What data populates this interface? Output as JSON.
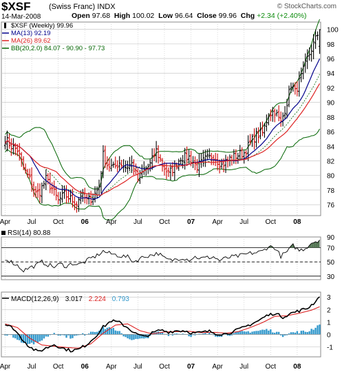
{
  "header": {
    "symbol": "$XSF",
    "name": "(Swiss Franc) INDX",
    "date": "14-Mar-2008",
    "open_label": "Open",
    "open": "97.68",
    "high_label": "High",
    "high": "100.02",
    "low_label": "Low",
    "low": "96.64",
    "close_label": "Close",
    "close": "99.96",
    "chg_label": "Chg",
    "chg": "+2.34 (+2.40%)",
    "credit": "© StockCharts.com"
  },
  "colors": {
    "up": "#000000",
    "down": "#cc0000",
    "ma13": "#00008b",
    "ma26": "#dd2222",
    "bb": "#006400",
    "macd": "#000000",
    "signal": "#dd2222",
    "hist": "#3399cc",
    "grid": "#c8c8c8",
    "rsi_fill": "#557755"
  },
  "chart_data": [
    {
      "type": "ohlc",
      "title": "$XSF (Weekly) 99.96",
      "legend": [
        {
          "label": "$XSF (Weekly) 99.96",
          "color": "#000000"
        },
        {
          "label": "MA(13) 92.19",
          "color": "#00008b"
        },
        {
          "label": "MA(26) 89.62",
          "color": "#dd2222"
        },
        {
          "label": "BB(20,2.0) 84.07 - 90.90 - 97.73",
          "color": "#006400"
        }
      ],
      "ylim": [
        74.5,
        101
      ],
      "y_ticks": [
        76,
        78,
        80,
        82,
        84,
        86,
        88,
        90,
        92,
        94,
        96,
        98,
        100
      ],
      "x_labels": [
        "Apr",
        "Jul",
        "Oct",
        "06",
        "Apr",
        "Jul",
        "Oct",
        "07",
        "Apr",
        "Jul",
        "Oct",
        "08"
      ],
      "x_label_weeks": [
        0,
        13,
        26,
        39,
        52,
        65,
        78,
        91,
        104,
        117,
        130,
        143
      ],
      "week_count": 155,
      "price_anchors": [
        [
          0,
          85
        ],
        [
          3,
          84
        ],
        [
          6,
          83.5
        ],
        [
          9,
          81
        ],
        [
          12,
          79.5
        ],
        [
          15,
          77.5
        ],
        [
          17,
          77.8
        ],
        [
          20,
          79.5
        ],
        [
          23,
          78.2
        ],
        [
          26,
          76.5
        ],
        [
          29,
          77.4
        ],
        [
          32,
          76.8
        ],
        [
          35,
          76.2
        ],
        [
          37,
          77.4
        ],
        [
          40,
          76.6
        ],
        [
          43,
          77
        ],
        [
          46,
          78.5
        ],
        [
          48,
          82.8
        ],
        [
          50,
          81.5
        ],
        [
          53,
          81
        ],
        [
          56,
          81.8
        ],
        [
          59,
          81.2
        ],
        [
          62,
          81.6
        ],
        [
          65,
          79.5
        ],
        [
          68,
          80.7
        ],
        [
          71,
          81.5
        ],
        [
          74,
          83.4
        ],
        [
          77,
          81.5
        ],
        [
          80,
          80.2
        ],
        [
          83,
          81.2
        ],
        [
          86,
          82.5
        ],
        [
          90,
          82.5
        ],
        [
          94,
          81.2
        ],
        [
          98,
          82.2
        ],
        [
          102,
          82.7
        ],
        [
          106,
          81.4
        ],
        [
          110,
          82.3
        ],
        [
          114,
          82.8
        ],
        [
          117,
          83.1
        ],
        [
          120,
          84.5
        ],
        [
          123,
          85.5
        ],
        [
          126,
          85.8
        ],
        [
          129,
          88.4
        ],
        [
          132,
          88.8
        ],
        [
          135,
          87.2
        ],
        [
          138,
          90
        ],
        [
          140,
          92.5
        ],
        [
          142,
          91.4
        ],
        [
          145,
          93.5
        ],
        [
          148,
          96
        ],
        [
          151,
          98
        ],
        [
          154,
          99.96
        ]
      ]
    },
    {
      "type": "line",
      "title": "RSI(14) 80.88",
      "ylim": [
        25,
        85
      ],
      "y_ticks": [
        30,
        50,
        70,
        90
      ],
      "reference_lines": [
        30,
        50,
        70
      ],
      "rsi_anchors": [
        [
          0,
          55
        ],
        [
          3,
          50
        ],
        [
          6,
          45
        ],
        [
          9,
          38
        ],
        [
          12,
          42
        ],
        [
          15,
          45
        ],
        [
          18,
          50
        ],
        [
          21,
          46
        ],
        [
          24,
          43
        ],
        [
          27,
          47
        ],
        [
          30,
          44
        ],
        [
          33,
          48
        ],
        [
          36,
          46
        ],
        [
          39,
          50
        ],
        [
          42,
          55
        ],
        [
          45,
          59
        ],
        [
          48,
          65
        ],
        [
          51,
          62
        ],
        [
          54,
          60
        ],
        [
          57,
          58
        ],
        [
          60,
          57
        ],
        [
          63,
          50
        ],
        [
          66,
          55
        ],
        [
          69,
          58
        ],
        [
          72,
          60
        ],
        [
          75,
          62
        ],
        [
          78,
          55
        ],
        [
          81,
          52
        ],
        [
          84,
          54
        ],
        [
          87,
          56
        ],
        [
          90,
          53
        ],
        [
          93,
          57
        ],
        [
          96,
          55
        ],
        [
          99,
          56
        ],
        [
          102,
          57
        ],
        [
          105,
          52
        ],
        [
          108,
          55
        ],
        [
          111,
          57
        ],
        [
          114,
          58
        ],
        [
          117,
          60
        ],
        [
          120,
          62
        ],
        [
          123,
          63
        ],
        [
          126,
          65
        ],
        [
          129,
          72
        ],
        [
          132,
          70
        ],
        [
          135,
          58
        ],
        [
          138,
          64
        ],
        [
          141,
          73
        ],
        [
          144,
          66
        ],
        [
          147,
          69
        ],
        [
          150,
          77
        ],
        [
          154,
          80.88
        ]
      ]
    },
    {
      "type": "line",
      "title": "MACD(12,26,9)",
      "legend": [
        {
          "label": "MACD(12,26,9)",
          "color": "#000000"
        },
        {
          "label": "3.017",
          "color": "#000000"
        },
        {
          "label": "2.224",
          "color": "#dd2222"
        },
        {
          "label": "0.793",
          "color": "#3399cc"
        }
      ],
      "ylim": [
        -1.8,
        3.4
      ],
      "y_ticks": [
        -1,
        0,
        1,
        2,
        3
      ],
      "macd_anchors": [
        [
          0,
          0.8
        ],
        [
          4,
          0.5
        ],
        [
          8,
          -0.3
        ],
        [
          12,
          -1
        ],
        [
          16,
          -1.4
        ],
        [
          20,
          -1.1
        ],
        [
          24,
          -0.8
        ],
        [
          28,
          -1.1
        ],
        [
          32,
          -1.3
        ],
        [
          36,
          -1.2
        ],
        [
          40,
          -0.8
        ],
        [
          44,
          -0.2
        ],
        [
          48,
          0.6
        ],
        [
          52,
          1.1
        ],
        [
          56,
          0.95
        ],
        [
          60,
          0.55
        ],
        [
          64,
          0.05
        ],
        [
          68,
          -0.2
        ],
        [
          72,
          0.1
        ],
        [
          76,
          0.35
        ],
        [
          80,
          0.2
        ],
        [
          84,
          0.3
        ],
        [
          88,
          0.3
        ],
        [
          92,
          0.1
        ],
        [
          96,
          0.15
        ],
        [
          100,
          0.25
        ],
        [
          104,
          0.05
        ],
        [
          108,
          0.05
        ],
        [
          112,
          0.25
        ],
        [
          116,
          0.5
        ],
        [
          120,
          0.8
        ],
        [
          124,
          1.1
        ],
        [
          128,
          1.5
        ],
        [
          132,
          1.7
        ],
        [
          136,
          1.4
        ],
        [
          140,
          1.7
        ],
        [
          144,
          1.9
        ],
        [
          148,
          2.1
        ],
        [
          151,
          2.5
        ],
        [
          154,
          3.017
        ]
      ],
      "signal_anchors": [
        [
          0,
          0.85
        ],
        [
          6,
          0.55
        ],
        [
          12,
          -0.3
        ],
        [
          18,
          -0.85
        ],
        [
          24,
          -0.95
        ],
        [
          30,
          -1.05
        ],
        [
          36,
          -1.1
        ],
        [
          42,
          -0.75
        ],
        [
          48,
          0.1
        ],
        [
          54,
          0.75
        ],
        [
          60,
          0.85
        ],
        [
          66,
          0.3
        ],
        [
          72,
          0.05
        ],
        [
          78,
          0.2
        ],
        [
          84,
          0.22
        ],
        [
          90,
          0.25
        ],
        [
          96,
          0.15
        ],
        [
          102,
          0.17
        ],
        [
          108,
          0.1
        ],
        [
          114,
          0.22
        ],
        [
          120,
          0.55
        ],
        [
          126,
          0.95
        ],
        [
          132,
          1.45
        ],
        [
          138,
          1.5
        ],
        [
          144,
          1.7
        ],
        [
          150,
          1.95
        ],
        [
          154,
          2.224
        ]
      ]
    }
  ]
}
